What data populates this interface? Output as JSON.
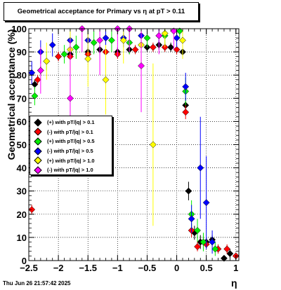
{
  "title": "Geometrical acceptance for Primary vs   η  at pT > 0.11",
  "footer": "Thu Jun 26 21:57:42 2025",
  "chart_data": {
    "type": "scatter",
    "xlabel": "η",
    "ylabel": "Geometrical acceptance (%)",
    "xlim": [
      -2.5,
      1.05
    ],
    "ylim": [
      0,
      100
    ],
    "x_ticks": [
      -2.5,
      -2,
      -1.5,
      -1,
      -0.5,
      0,
      0.5,
      1
    ],
    "x_tick_labels": [
      "−2.5",
      "−2",
      "−1.5",
      "−1",
      "−0.5",
      "0",
      "0.5",
      "1"
    ],
    "y_ticks": [
      0,
      10,
      20,
      30,
      40,
      50,
      60,
      70,
      80,
      90,
      100
    ],
    "y_tick_labels": [
      "0",
      "10",
      "20",
      "30",
      "40",
      "50",
      "60",
      "70",
      "80",
      "90",
      "100"
    ],
    "grid": true,
    "legend_position": "left-middle",
    "series": [
      {
        "name": "(+) with pT/|q| > 0.1",
        "color": "#000000",
        "points": [
          {
            "x": -2.4,
            "y": 76,
            "err": 2
          },
          {
            "x": -2.3,
            "y": 82,
            "err": 2
          },
          {
            "x": -2.0,
            "y": 88,
            "err": 2
          },
          {
            "x": -1.8,
            "y": 89,
            "err": 2
          },
          {
            "x": -1.5,
            "y": 90,
            "err": 2
          },
          {
            "x": -1.3,
            "y": 91,
            "err": 2
          },
          {
            "x": -1.0,
            "y": 90,
            "err": 2
          },
          {
            "x": -0.8,
            "y": 91,
            "err": 2
          },
          {
            "x": -0.5,
            "y": 92,
            "err": 2
          },
          {
            "x": -0.3,
            "y": 93,
            "err": 2
          },
          {
            "x": -0.1,
            "y": 92,
            "err": 2
          },
          {
            "x": 0.1,
            "y": 90,
            "err": 2
          },
          {
            "x": 0.15,
            "y": 67,
            "err": 3
          },
          {
            "x": 0.2,
            "y": 30,
            "err": 4
          },
          {
            "x": 0.3,
            "y": 12,
            "err": 3
          },
          {
            "x": 0.4,
            "y": 8,
            "err": 3
          },
          {
            "x": 0.5,
            "y": 8,
            "err": 2
          },
          {
            "x": 0.6,
            "y": 9,
            "err": 2
          },
          {
            "x": 0.8,
            "y": 1,
            "err": 1
          },
          {
            "x": 0.9,
            "y": 3,
            "err": 2
          }
        ]
      },
      {
        "name": "(-) with pT/|q| > 0.1",
        "color": "#ff0000",
        "points": [
          {
            "x": -2.45,
            "y": 22,
            "err": 2
          },
          {
            "x": -2.35,
            "y": 78,
            "err": 2
          },
          {
            "x": -2.0,
            "y": 88,
            "err": 2
          },
          {
            "x": -1.8,
            "y": 88,
            "err": 2
          },
          {
            "x": -1.5,
            "y": 89,
            "err": 2
          },
          {
            "x": -1.2,
            "y": 90,
            "err": 2
          },
          {
            "x": -1.0,
            "y": 89,
            "err": 2
          },
          {
            "x": -0.7,
            "y": 91,
            "err": 2
          },
          {
            "x": -0.4,
            "y": 92,
            "err": 2
          },
          {
            "x": -0.2,
            "y": 92,
            "err": 2
          },
          {
            "x": 0.0,
            "y": 91,
            "err": 2
          },
          {
            "x": 0.15,
            "y": 64,
            "err": 3
          },
          {
            "x": 0.25,
            "y": 13,
            "err": 3
          },
          {
            "x": 0.35,
            "y": 6,
            "err": 2
          },
          {
            "x": 0.5,
            "y": 7,
            "err": 2
          },
          {
            "x": 0.7,
            "y": 5,
            "err": 2
          },
          {
            "x": 0.85,
            "y": 5,
            "err": 2
          },
          {
            "x": 1.0,
            "y": 2,
            "err": 1
          }
        ]
      },
      {
        "name": "(+) with pT/|q| > 0.5",
        "color": "#00ee00",
        "points": [
          {
            "x": -2.4,
            "y": 71,
            "err": 4
          },
          {
            "x": -2.2,
            "y": 86,
            "err": 4
          },
          {
            "x": -1.9,
            "y": 89,
            "err": 4
          },
          {
            "x": -1.7,
            "y": 92,
            "err": 5
          },
          {
            "x": -1.4,
            "y": 94,
            "err": 5
          },
          {
            "x": -1.1,
            "y": 95,
            "err": 5
          },
          {
            "x": -0.8,
            "y": 94,
            "err": 5
          },
          {
            "x": -0.5,
            "y": 96,
            "err": 4
          },
          {
            "x": -0.2,
            "y": 97,
            "err": 4
          },
          {
            "x": 0.05,
            "y": 99,
            "err": 3
          },
          {
            "x": 0.15,
            "y": 73,
            "err": 6
          },
          {
            "x": 0.25,
            "y": 20,
            "err": 6
          },
          {
            "x": 0.35,
            "y": 13,
            "err": 5
          },
          {
            "x": 0.45,
            "y": 8,
            "err": 4
          },
          {
            "x": 0.65,
            "y": 5,
            "err": 3
          }
        ]
      },
      {
        "name": "(-) with pT/|q| > 0.5",
        "color": "#0000ff",
        "points": [
          {
            "x": -2.45,
            "y": 81,
            "err": 5
          },
          {
            "x": -2.3,
            "y": 90,
            "err": 5
          },
          {
            "x": -2.1,
            "y": 93,
            "err": 5
          },
          {
            "x": -1.8,
            "y": 95,
            "err": 5
          },
          {
            "x": -1.5,
            "y": 95,
            "err": 5
          },
          {
            "x": -1.2,
            "y": 96,
            "err": 4
          },
          {
            "x": -0.9,
            "y": 96,
            "err": 4
          },
          {
            "x": -0.6,
            "y": 97,
            "err": 4
          },
          {
            "x": -0.3,
            "y": 97,
            "err": 4
          },
          {
            "x": 0.0,
            "y": 96,
            "err": 4
          },
          {
            "x": 0.15,
            "y": 75,
            "err": 6
          },
          {
            "x": 0.25,
            "y": 18,
            "err": 6
          },
          {
            "x": 0.4,
            "y": 40,
            "err": 22
          },
          {
            "x": 0.5,
            "y": 25,
            "err": 20
          },
          {
            "x": 0.6,
            "y": 8,
            "err": 5
          }
        ]
      },
      {
        "name": "(+) with pT/|q| > 1.0",
        "color": "#ffff00",
        "points": [
          {
            "x": -2.2,
            "y": 86,
            "err": 8
          },
          {
            "x": -1.8,
            "y": 91,
            "err": 10
          },
          {
            "x": -1.5,
            "y": 87,
            "err": 12
          },
          {
            "x": -1.2,
            "y": 78,
            "err": 15
          },
          {
            "x": -0.9,
            "y": 95,
            "err": 10
          },
          {
            "x": -0.6,
            "y": 93,
            "err": 10
          },
          {
            "x": -0.4,
            "y": 50,
            "err": 35
          },
          {
            "x": -0.2,
            "y": 98,
            "err": 6
          },
          {
            "x": 0.1,
            "y": 95,
            "err": 8
          }
        ]
      },
      {
        "name": "(-) with pT/|q| > 1.0",
        "color": "#ff00ff",
        "points": [
          {
            "x": -2.3,
            "y": 82,
            "err": 10
          },
          {
            "x": -1.8,
            "y": 70,
            "err": 25
          },
          {
            "x": -1.6,
            "y": 100,
            "err": 10
          },
          {
            "x": -1.3,
            "y": 95,
            "err": 15
          },
          {
            "x": -1.0,
            "y": 100,
            "err": 12
          },
          {
            "x": -0.8,
            "y": 100,
            "err": 10
          },
          {
            "x": -0.6,
            "y": 84,
            "err": 20
          },
          {
            "x": -0.3,
            "y": 97,
            "err": 8
          },
          {
            "x": -0.05,
            "y": 99,
            "err": 8
          }
        ]
      }
    ]
  }
}
